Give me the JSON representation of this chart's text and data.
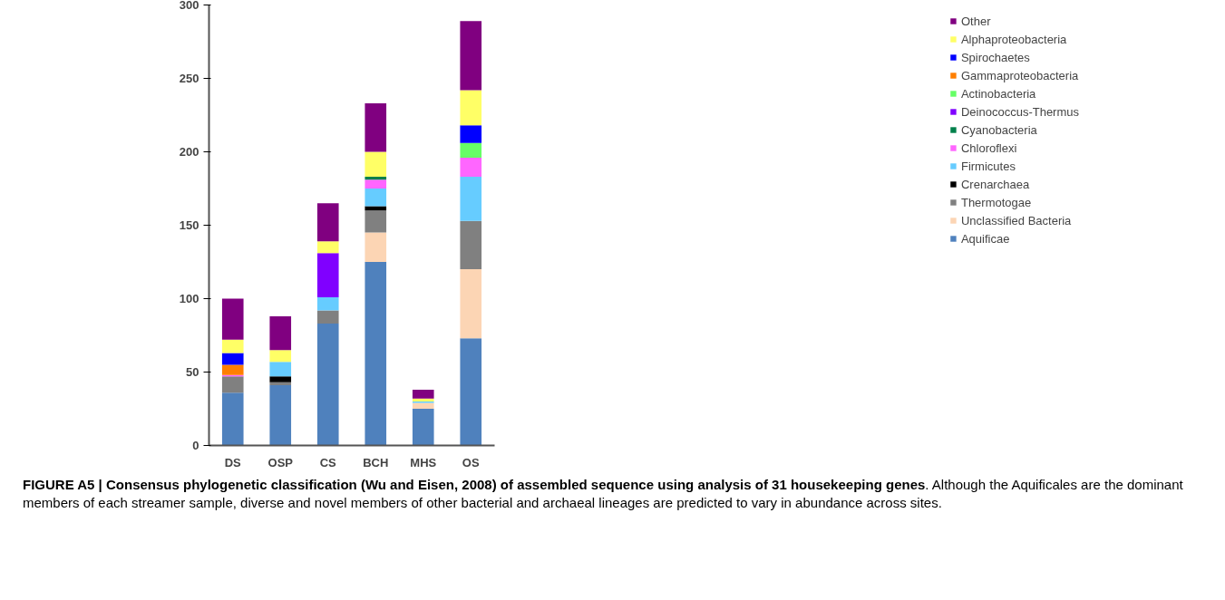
{
  "chart_data": {
    "type": "bar",
    "stacked": true,
    "categories": [
      "DS",
      "OSP",
      "CS",
      "BCH",
      "MHS",
      "OS"
    ],
    "series": [
      {
        "name": "Aquificae",
        "color": "#4f81bd",
        "values": [
          36,
          41,
          83,
          125,
          25,
          73
        ]
      },
      {
        "name": "Unclassified Bacteria",
        "color": "#fcd5b4",
        "values": [
          0,
          0,
          0,
          20,
          4,
          47
        ]
      },
      {
        "name": "Thermotogae",
        "color": "#808080",
        "values": [
          11,
          2,
          9,
          15,
          0,
          33
        ]
      },
      {
        "name": "Crenarchaea",
        "color": "#000000",
        "values": [
          0,
          4,
          0,
          3,
          0,
          0
        ]
      },
      {
        "name": "Firmicutes",
        "color": "#66ccff",
        "values": [
          0,
          10,
          9,
          12,
          1,
          30
        ]
      },
      {
        "name": "Chloroflexi",
        "color": "#ff66ff",
        "values": [
          1,
          0,
          0,
          6,
          0,
          13
        ]
      },
      {
        "name": "Cyanobacteria",
        "color": "#00804b",
        "values": [
          0,
          0,
          0,
          2,
          0,
          0
        ]
      },
      {
        "name": "Deinococcus-Thermus",
        "color": "#8000ff",
        "values": [
          0,
          0,
          30,
          0,
          0,
          0
        ]
      },
      {
        "name": "Actinobacteria",
        "color": "#66ff66",
        "values": [
          0,
          0,
          0,
          0,
          0,
          10
        ]
      },
      {
        "name": "Gammaproteobacteria",
        "color": "#ff7f00",
        "values": [
          7,
          0,
          0,
          0,
          0,
          0
        ]
      },
      {
        "name": "Spirochaetes",
        "color": "#0000ff",
        "values": [
          8,
          0,
          0,
          0,
          0,
          12
        ]
      },
      {
        "name": "Alphaproteobacteria",
        "color": "#ffff66",
        "values": [
          9,
          8,
          8,
          17,
          2,
          24
        ]
      },
      {
        "name": "Other",
        "color": "#800080",
        "values": [
          28,
          23,
          26,
          33,
          6,
          47
        ]
      }
    ],
    "ylim": [
      0,
      300
    ],
    "yticks": [
      0,
      50,
      100,
      150,
      200,
      250,
      300
    ],
    "grid": false,
    "legend": "right",
    "annotations": [
      "FIGURE A5 | Consensus phylogenetic classification (Wu and Eisen, 2008) of assembled sequence using analysis of 31 housekeeping genes",
      ". Although the Aquificales are the dominant members of each streamer sample, diverse and novel members of other bacterial and archaeal lineages are predicted to vary in abundance across sites."
    ]
  }
}
